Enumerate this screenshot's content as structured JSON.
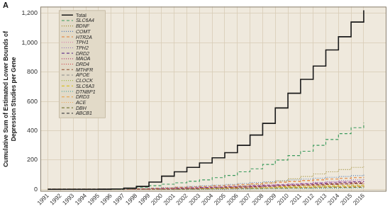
{
  "chart_data": {
    "type": "line",
    "title": "A",
    "y_label": [
      "Cumulative Sum of Estimated Lower Bounds of",
      "Depression Studies per Gene"
    ],
    "x": [
      1991,
      1992,
      1993,
      1994,
      1995,
      1996,
      1997,
      1998,
      1999,
      2000,
      2001,
      2002,
      2003,
      2004,
      2005,
      2006,
      2007,
      2008,
      2009,
      2010,
      2011,
      2012,
      2013,
      2014,
      2015,
      2016
    ],
    "xlim": [
      1990.4,
      2017.8
    ],
    "xticks": [
      1991,
      1992,
      1993,
      1994,
      1995,
      1996,
      1997,
      1998,
      1999,
      2000,
      2001,
      2002,
      2003,
      2004,
      2005,
      2006,
      2007,
      2008,
      2009,
      2010,
      2011,
      2012,
      2013,
      2014,
      2015,
      2016
    ],
    "ylim": [
      -15,
      1245
    ],
    "yticks": [
      0,
      200,
      400,
      600,
      800,
      {
        "value": 1000,
        "label": "1,000"
      },
      {
        "value": 1200,
        "label": "1,200"
      }
    ],
    "grid": true,
    "legend": "upper left",
    "series": [
      {
        "name": "Total",
        "color": "#1a1a1a",
        "line_style": "solid",
        "values": [
          0,
          0,
          0,
          0,
          1,
          3,
          8,
          20,
          50,
          90,
          120,
          150,
          180,
          215,
          250,
          300,
          370,
          450,
          555,
          655,
          750,
          840,
          950,
          1040,
          1140,
          1220
        ]
      },
      {
        "name": "SLC6A4",
        "color": "#3a9a5c",
        "line_style": "dashed",
        "values": [
          0,
          0,
          0,
          0,
          0,
          2,
          6,
          15,
          25,
          35,
          45,
          55,
          65,
          80,
          95,
          120,
          140,
          170,
          200,
          230,
          260,
          300,
          340,
          380,
          420,
          455
        ]
      },
      {
        "name": "BDNF",
        "color": "#9a8a2e",
        "line_style": "dotted",
        "values": [
          0,
          0,
          0,
          0,
          0,
          0,
          0,
          0,
          0,
          0,
          1,
          3,
          6,
          10,
          16,
          24,
          33,
          45,
          58,
          72,
          88,
          105,
          120,
          135,
          150,
          155
        ]
      },
      {
        "name": "COMT",
        "color": "#4a78b8",
        "line_style": "dotted",
        "values": [
          0,
          0,
          0,
          0,
          0,
          1,
          3,
          6,
          9,
          12,
          16,
          20,
          24,
          29,
          34,
          40,
          46,
          52,
          58,
          64,
          70,
          76,
          82,
          88,
          94,
          100
        ]
      },
      {
        "name": "HTR2A",
        "color": "#e07a2e",
        "line_style": "dashed",
        "values": [
          0,
          0,
          0,
          0,
          0,
          1,
          3,
          5,
          8,
          10,
          14,
          17,
          20,
          25,
          29,
          34,
          39,
          44,
          49,
          54,
          60,
          65,
          70,
          75,
          80,
          85
        ]
      },
      {
        "name": "TPH1",
        "color": "#d86aa8",
        "line_style": "dotted",
        "values": [
          0,
          0,
          0,
          0,
          0,
          0,
          2,
          4,
          5,
          7,
          10,
          12,
          14,
          17,
          20,
          24,
          28,
          31,
          35,
          38,
          42,
          46,
          49,
          53,
          56,
          60
        ]
      },
      {
        "name": "TPH2",
        "color": "#8e6bb8",
        "line_style": "dotted",
        "values": [
          0,
          0,
          0,
          0,
          0,
          0,
          0,
          0,
          0,
          0,
          0,
          0,
          0,
          0,
          3,
          8,
          14,
          20,
          27,
          34,
          41,
          48,
          54,
          60,
          65,
          70
        ]
      },
      {
        "name": "DRD2",
        "color": "#6a3d8e",
        "line_style": "dashed",
        "values": [
          0,
          0,
          0,
          0,
          0,
          1,
          2,
          3,
          5,
          7,
          9,
          11,
          13,
          16,
          19,
          22,
          25,
          29,
          32,
          35,
          39,
          42,
          45,
          49,
          52,
          55
        ]
      },
      {
        "name": "MAOA",
        "color": "#b03a6e",
        "line_style": "dotted",
        "values": [
          0,
          0,
          0,
          0,
          0,
          0,
          1,
          3,
          4,
          6,
          8,
          10,
          12,
          14,
          17,
          20,
          23,
          26,
          29,
          32,
          35,
          38,
          41,
          44,
          47,
          50
        ]
      },
      {
        "name": "DRD4",
        "color": "#d0303a",
        "line_style": "dotted",
        "values": [
          0,
          0,
          0,
          0,
          0,
          0,
          1,
          2,
          4,
          5,
          6,
          8,
          10,
          12,
          14,
          16,
          18,
          21,
          23,
          26,
          28,
          30,
          33,
          35,
          38,
          40
        ]
      },
      {
        "name": "MTHFR",
        "color": "#8b4a2a",
        "line_style": "dashed",
        "values": [
          0,
          0,
          0,
          0,
          0,
          0,
          0,
          1,
          2,
          3,
          5,
          7,
          9,
          11,
          13,
          16,
          19,
          22,
          25,
          28,
          31,
          34,
          37,
          40,
          43,
          45
        ]
      },
      {
        "name": "APOE",
        "color": "#8a8a8a",
        "line_style": "dashed",
        "values": [
          0,
          0,
          0,
          0,
          0,
          0,
          1,
          2,
          3,
          4,
          6,
          7,
          9,
          11,
          13,
          15,
          18,
          20,
          23,
          25,
          28,
          30,
          33,
          35,
          38,
          40
        ]
      },
      {
        "name": "CLOCK",
        "color": "#9ab83a",
        "line_style": "dotted",
        "values": [
          0,
          0,
          0,
          0,
          0,
          0,
          0,
          0,
          0,
          0,
          0,
          0,
          1,
          2,
          4,
          6,
          8,
          10,
          12,
          14,
          16,
          18,
          20,
          22,
          24,
          25
        ]
      },
      {
        "name": "SLC6A3",
        "color": "#d8c02a",
        "line_style": "dashed",
        "values": [
          0,
          0,
          0,
          0,
          0,
          0,
          1,
          2,
          3,
          4,
          5,
          6,
          7,
          9,
          10,
          12,
          14,
          16,
          18,
          19,
          21,
          23,
          25,
          27,
          29,
          30
        ]
      },
      {
        "name": "DTNBP1",
        "color": "#2a9a9a",
        "line_style": "dotted",
        "values": [
          0,
          0,
          0,
          0,
          0,
          0,
          0,
          0,
          0,
          0,
          0,
          0,
          0,
          1,
          2,
          3,
          4,
          5,
          6,
          6,
          7,
          8,
          8,
          9,
          10,
          10
        ]
      },
      {
        "name": "DRD3",
        "color": "#e89a3a",
        "line_style": "dashed",
        "values": [
          0,
          0,
          0,
          0,
          0,
          0,
          1,
          1,
          2,
          3,
          4,
          4,
          5,
          6,
          7,
          8,
          9,
          10,
          12,
          13,
          14,
          15,
          17,
          18,
          19,
          20
        ]
      },
      {
        "name": "ACE",
        "color": "#f0a050",
        "line_style": "dotted",
        "values": [
          0,
          0,
          0,
          0,
          0,
          0,
          0,
          1,
          2,
          3,
          4,
          5,
          6,
          7,
          8,
          10,
          11,
          13,
          14,
          16,
          17,
          19,
          20,
          22,
          23,
          25
        ]
      },
      {
        "name": "DBH",
        "color": "#7a7a3a",
        "line_style": "dashed",
        "values": [
          0,
          0,
          0,
          0,
          0,
          0,
          0,
          1,
          1,
          2,
          2,
          3,
          4,
          4,
          5,
          6,
          7,
          8,
          8,
          9,
          10,
          11,
          12,
          13,
          14,
          15
        ]
      },
      {
        "name": "ABCB1",
        "color": "#4a4a4a",
        "line_style": "dashed",
        "values": [
          0,
          0,
          0,
          0,
          0,
          0,
          0,
          0,
          0,
          0,
          1,
          2,
          3,
          4,
          5,
          6,
          8,
          9,
          10,
          12,
          13,
          15,
          16,
          17,
          19,
          20
        ]
      }
    ]
  }
}
